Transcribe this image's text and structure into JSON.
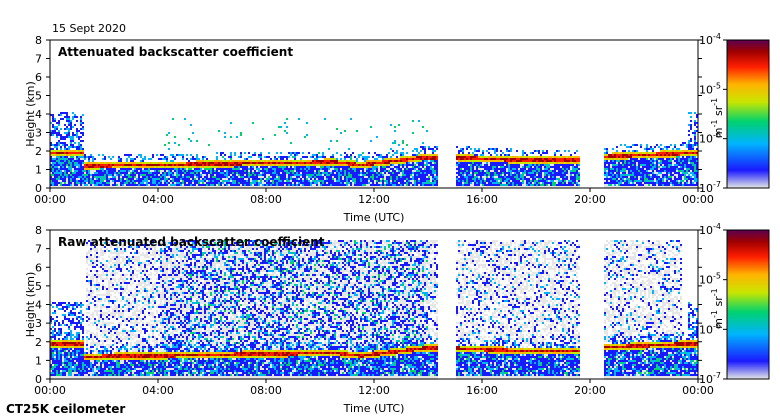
{
  "date_label": "15 Sept 2020",
  "footer_label": "CT25K ceilometer",
  "chart_data": [
    {
      "type": "heatmap",
      "title": "Attenuated backscatter coefficient",
      "xlabel": "Time (UTC)",
      "ylabel": "Height (km)",
      "x_ticks": [
        "00:00",
        "04:00",
        "08:00",
        "12:00",
        "16:00",
        "20:00",
        "00:00"
      ],
      "xlim_hours": [
        0,
        24
      ],
      "y_ticks": [
        0,
        1,
        2,
        3,
        4,
        5,
        6,
        7,
        8
      ],
      "ylim": [
        0,
        8
      ],
      "colorbar": {
        "ticks": [
          "10",
          "10",
          "10",
          "10"
        ],
        "exponents": [
          "-4",
          "-5",
          "-6",
          "-7"
        ],
        "values": [
          0.0001,
          1e-05,
          1e-06,
          1e-07
        ],
        "unit_text": "m",
        "unit_exp": "-1",
        "unit_text2": "sr",
        "unit_exp2": "-1",
        "scale": "log",
        "colors": [
          "#e6e6e6",
          "#1a1aff",
          "#00b4ff",
          "#00d26e",
          "#c8e600",
          "#ffb400",
          "#ff1e00",
          "#a00000",
          "#5a0050"
        ]
      },
      "layer_height_km": [
        {
          "t": 1.2,
          "h": 1.25
        },
        {
          "t": 4.0,
          "h": 1.3
        },
        {
          "t": 8.0,
          "h": 1.4
        },
        {
          "t": 10.5,
          "h": 1.45
        },
        {
          "t": 11.5,
          "h": 1.3
        },
        {
          "t": 13.8,
          "h": 1.7
        },
        {
          "t": 15.0,
          "h": 1.7
        },
        {
          "t": 17.5,
          "h": 1.55
        },
        {
          "t": 19.5,
          "h": 1.55
        },
        {
          "t": 20.5,
          "h": 1.75
        },
        {
          "t": 23.8,
          "h": 1.95
        }
      ],
      "data_gaps_hours": [
        [
          14.3,
          15.0
        ],
        [
          19.6,
          20.5
        ]
      ]
    },
    {
      "type": "heatmap",
      "title": "Raw attenuated backscatter coefficient",
      "xlabel": "Time (UTC)",
      "ylabel": "Height (km)",
      "x_ticks": [
        "00:00",
        "04:00",
        "08:00",
        "12:00",
        "16:00",
        "20:00",
        "00:00"
      ],
      "xlim_hours": [
        0,
        24
      ],
      "y_ticks": [
        0,
        1,
        2,
        3,
        4,
        5,
        6,
        7,
        8
      ],
      "ylim": [
        0,
        8
      ],
      "colorbar": {
        "ticks": [
          "10",
          "10",
          "10",
          "10"
        ],
        "exponents": [
          "-4",
          "-5",
          "-6",
          "-7"
        ],
        "values": [
          0.0001,
          1e-05,
          1e-06,
          1e-07
        ],
        "unit_text": "m",
        "unit_exp": "-1",
        "unit_text2": "sr",
        "unit_exp2": "-1",
        "scale": "log",
        "colors": [
          "#e6e6e6",
          "#1a1aff",
          "#00b4ff",
          "#00d26e",
          "#c8e600",
          "#ffb400",
          "#ff1e00",
          "#a00000",
          "#5a0050"
        ]
      },
      "layer_height_km": [
        {
          "t": 1.2,
          "h": 1.25
        },
        {
          "t": 4.0,
          "h": 1.3
        },
        {
          "t": 8.0,
          "h": 1.4
        },
        {
          "t": 10.5,
          "h": 1.45
        },
        {
          "t": 11.5,
          "h": 1.3
        },
        {
          "t": 13.8,
          "h": 1.7
        },
        {
          "t": 15.0,
          "h": 1.7
        },
        {
          "t": 17.5,
          "h": 1.55
        },
        {
          "t": 19.5,
          "h": 1.55
        },
        {
          "t": 20.5,
          "h": 1.75
        },
        {
          "t": 23.8,
          "h": 1.95
        }
      ],
      "data_gaps_hours": [
        [
          14.3,
          15.0
        ],
        [
          19.6,
          20.5
        ]
      ]
    }
  ]
}
